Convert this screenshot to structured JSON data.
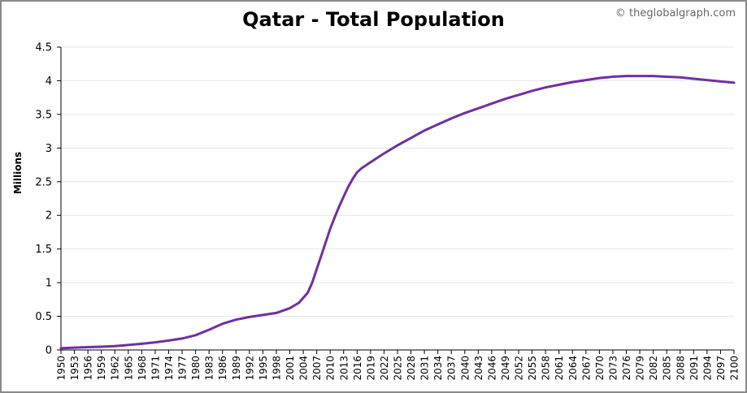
{
  "credit": "© theglobalgraph.com",
  "chart_data": {
    "type": "line",
    "title": "Qatar - Total Population",
    "ylabel": "Millions",
    "xlabel": "",
    "ylim": [
      0,
      4.5
    ],
    "yticks": [
      "0",
      "0.5",
      "1",
      "1.5",
      "2",
      "2.5",
      "3",
      "3.5",
      "4",
      "4.5"
    ],
    "xlim": [
      1950,
      2100
    ],
    "xtick_years": [
      1950,
      1953,
      1956,
      1959,
      1962,
      1965,
      1968,
      1971,
      1974,
      1977,
      1980,
      1983,
      1986,
      1989,
      1992,
      1995,
      1998,
      2001,
      2004,
      2007,
      2010,
      2013,
      2016,
      2019,
      2022,
      2025,
      2028,
      2031,
      2034,
      2037,
      2040,
      2043,
      2046,
      2049,
      2052,
      2055,
      2058,
      2061,
      2064,
      2067,
      2070,
      2073,
      2076,
      2079,
      2082,
      2085,
      2088,
      2091,
      2094,
      2097,
      2100
    ],
    "grid": true,
    "line_color": "#7030a0",
    "series": [
      {
        "x": [
          1950,
          1953,
          1956,
          1959,
          1962,
          1965,
          1968,
          1971,
          1974,
          1977,
          1980,
          1983,
          1986,
          1989,
          1992,
          1995,
          1998,
          2001,
          2003,
          2005,
          2006,
          2007,
          2008,
          2009,
          2010,
          2011,
          2012,
          2013,
          2014,
          2015,
          2016,
          2017,
          2019,
          2022,
          2025,
          2028,
          2031,
          2034,
          2037,
          2040,
          2043,
          2046,
          2049,
          2052,
          2055,
          2058,
          2061,
          2064,
          2067,
          2070,
          2073,
          2076,
          2079,
          2082,
          2085,
          2088,
          2091,
          2094,
          2097,
          2100
        ],
        "y": [
          0.025,
          0.035,
          0.042,
          0.048,
          0.058,
          0.073,
          0.092,
          0.113,
          0.14,
          0.17,
          0.22,
          0.3,
          0.39,
          0.45,
          0.49,
          0.52,
          0.55,
          0.62,
          0.7,
          0.85,
          1.0,
          1.2,
          1.4,
          1.6,
          1.8,
          1.97,
          2.13,
          2.28,
          2.42,
          2.54,
          2.64,
          2.7,
          2.79,
          2.92,
          3.04,
          3.15,
          3.26,
          3.35,
          3.44,
          3.52,
          3.59,
          3.66,
          3.73,
          3.79,
          3.85,
          3.9,
          3.94,
          3.98,
          4.01,
          4.04,
          4.06,
          4.07,
          4.07,
          4.07,
          4.06,
          4.05,
          4.03,
          4.01,
          3.99,
          3.97
        ]
      }
    ]
  }
}
